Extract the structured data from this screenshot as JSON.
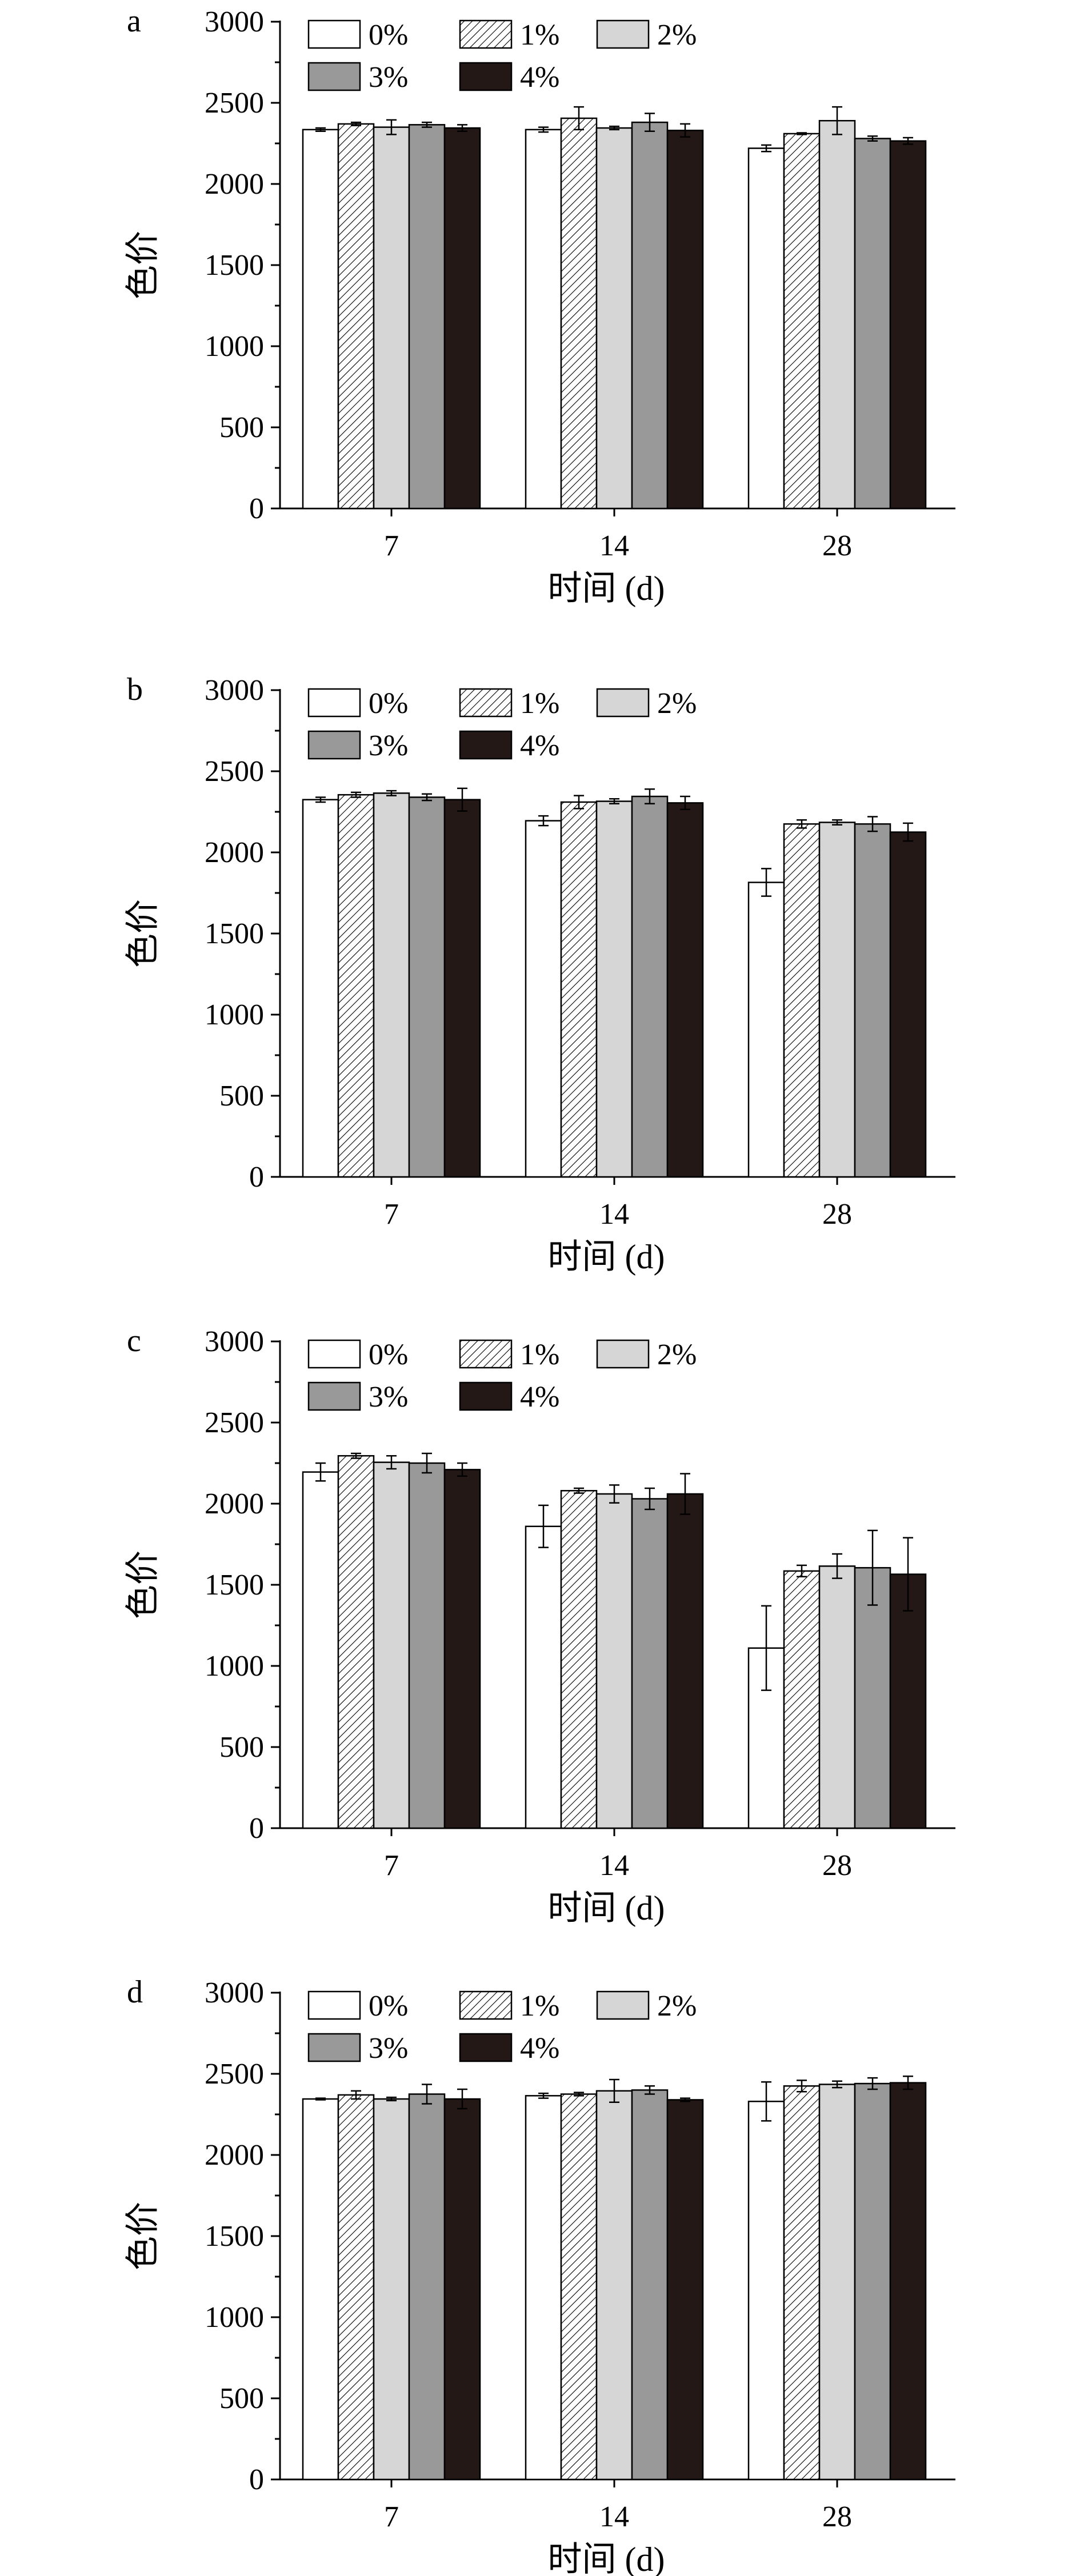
{
  "chart_data": [
    {
      "type": "bar",
      "panel_label": "a",
      "xlabel": "时间 (d)",
      "ylabel": "色价",
      "ylim": [
        0,
        3000
      ],
      "yticks": [
        "0",
        "500",
        "1000",
        "1500",
        "2000",
        "2500",
        "3000"
      ],
      "categories": [
        "7",
        "14",
        "28"
      ],
      "legend_position": "top-left",
      "series": [
        {
          "name": "0%",
          "values": [
            2335,
            2335,
            2220
          ],
          "errors": [
            10,
            15,
            20
          ]
        },
        {
          "name": "1%",
          "values": [
            2370,
            2405,
            2310
          ],
          "errors": [
            10,
            70,
            5
          ]
        },
        {
          "name": "2%",
          "values": [
            2350,
            2345,
            2390
          ],
          "errors": [
            45,
            10,
            85
          ]
        },
        {
          "name": "3%",
          "values": [
            2365,
            2380,
            2280
          ],
          "errors": [
            15,
            55,
            15
          ]
        },
        {
          "name": "4%",
          "values": [
            2345,
            2330,
            2265
          ],
          "errors": [
            20,
            40,
            20
          ]
        }
      ]
    },
    {
      "type": "bar",
      "panel_label": "b",
      "xlabel": "时间 (d)",
      "ylabel": "色价",
      "ylim": [
        0,
        3000
      ],
      "yticks": [
        "0",
        "500",
        "1000",
        "1500",
        "2000",
        "2500",
        "3000"
      ],
      "categories": [
        "7",
        "14",
        "28"
      ],
      "legend_position": "top-left",
      "series": [
        {
          "name": "0%",
          "values": [
            2325,
            2195,
            1815
          ],
          "errors": [
            15,
            30,
            85
          ]
        },
        {
          "name": "1%",
          "values": [
            2355,
            2310,
            2175
          ],
          "errors": [
            15,
            40,
            25
          ]
        },
        {
          "name": "2%",
          "values": [
            2365,
            2315,
            2185
          ],
          "errors": [
            15,
            15,
            15
          ]
        },
        {
          "name": "3%",
          "values": [
            2340,
            2345,
            2175
          ],
          "errors": [
            20,
            45,
            45
          ]
        },
        {
          "name": "4%",
          "values": [
            2325,
            2305,
            2125
          ],
          "errors": [
            70,
            40,
            55
          ]
        }
      ]
    },
    {
      "type": "bar",
      "panel_label": "c",
      "xlabel": "时间 (d)",
      "ylabel": "色价",
      "ylim": [
        0,
        3000
      ],
      "yticks": [
        "0",
        "500",
        "1000",
        "1500",
        "2000",
        "2500",
        "3000"
      ],
      "categories": [
        "7",
        "14",
        "28"
      ],
      "legend_position": "top-left",
      "series": [
        {
          "name": "0%",
          "values": [
            2195,
            1860,
            1110
          ],
          "errors": [
            55,
            130,
            260
          ]
        },
        {
          "name": "1%",
          "values": [
            2295,
            2080,
            1585
          ],
          "errors": [
            15,
            15,
            35
          ]
        },
        {
          "name": "2%",
          "values": [
            2255,
            2060,
            1615
          ],
          "errors": [
            40,
            55,
            75
          ]
        },
        {
          "name": "3%",
          "values": [
            2250,
            2030,
            1605
          ],
          "errors": [
            60,
            65,
            230
          ]
        },
        {
          "name": "4%",
          "values": [
            2210,
            2060,
            1565
          ],
          "errors": [
            40,
            125,
            225
          ]
        }
      ]
    },
    {
      "type": "bar",
      "panel_label": "d",
      "xlabel": "时间 (d)",
      "ylabel": "色价",
      "ylim": [
        0,
        3000
      ],
      "yticks": [
        "0",
        "500",
        "1000",
        "1500",
        "2000",
        "2500",
        "3000"
      ],
      "categories": [
        "7",
        "14",
        "28"
      ],
      "legend_position": "top-left",
      "series": [
        {
          "name": "0%",
          "values": [
            2345,
            2365,
            2330
          ],
          "errors": [
            5,
            15,
            120
          ]
        },
        {
          "name": "1%",
          "values": [
            2370,
            2375,
            2425
          ],
          "errors": [
            25,
            10,
            35
          ]
        },
        {
          "name": "2%",
          "values": [
            2345,
            2395,
            2435
          ],
          "errors": [
            10,
            70,
            20
          ]
        },
        {
          "name": "3%",
          "values": [
            2375,
            2400,
            2440
          ],
          "errors": [
            60,
            25,
            35
          ]
        },
        {
          "name": "4%",
          "values": [
            2345,
            2340,
            2445
          ],
          "errors": [
            60,
            10,
            40
          ]
        }
      ]
    }
  ],
  "colors": {
    "s0": "#ffffff",
    "s1_hatch": "#ffffff",
    "s2": "#d6d6d6",
    "s3": "#999999",
    "s4": "#231815",
    "axis": "#000000"
  }
}
